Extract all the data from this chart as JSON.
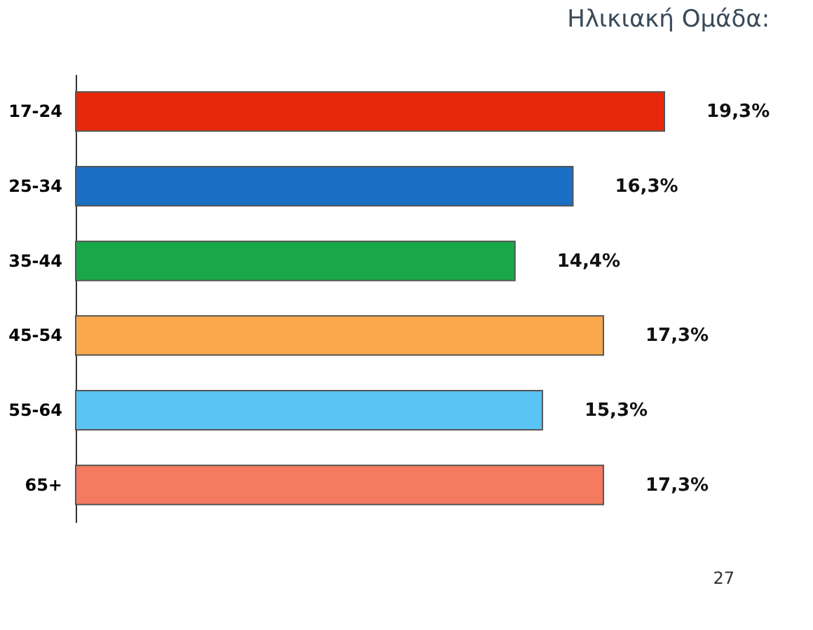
{
  "chart_data": {
    "type": "bar",
    "orientation": "horizontal",
    "title": "Ηλικιακή Ομάδα:",
    "categories": [
      "17-24",
      "25-34",
      "35-44",
      "45-54",
      "55-64",
      "65+"
    ],
    "values": [
      19.3,
      16.3,
      14.4,
      17.3,
      15.3,
      17.3
    ],
    "colors": [
      "#e8280a",
      "#1a6fc4",
      "#18a84a",
      "#f9a84c",
      "#5ac4f4",
      "#f57a60"
    ],
    "value_labels": [
      "19,3%",
      "16,3%",
      "14,4%",
      "17,3%",
      "15,3%",
      "17,3%"
    ],
    "annotations": [
      "27"
    ],
    "grid": false,
    "legend": false
  }
}
